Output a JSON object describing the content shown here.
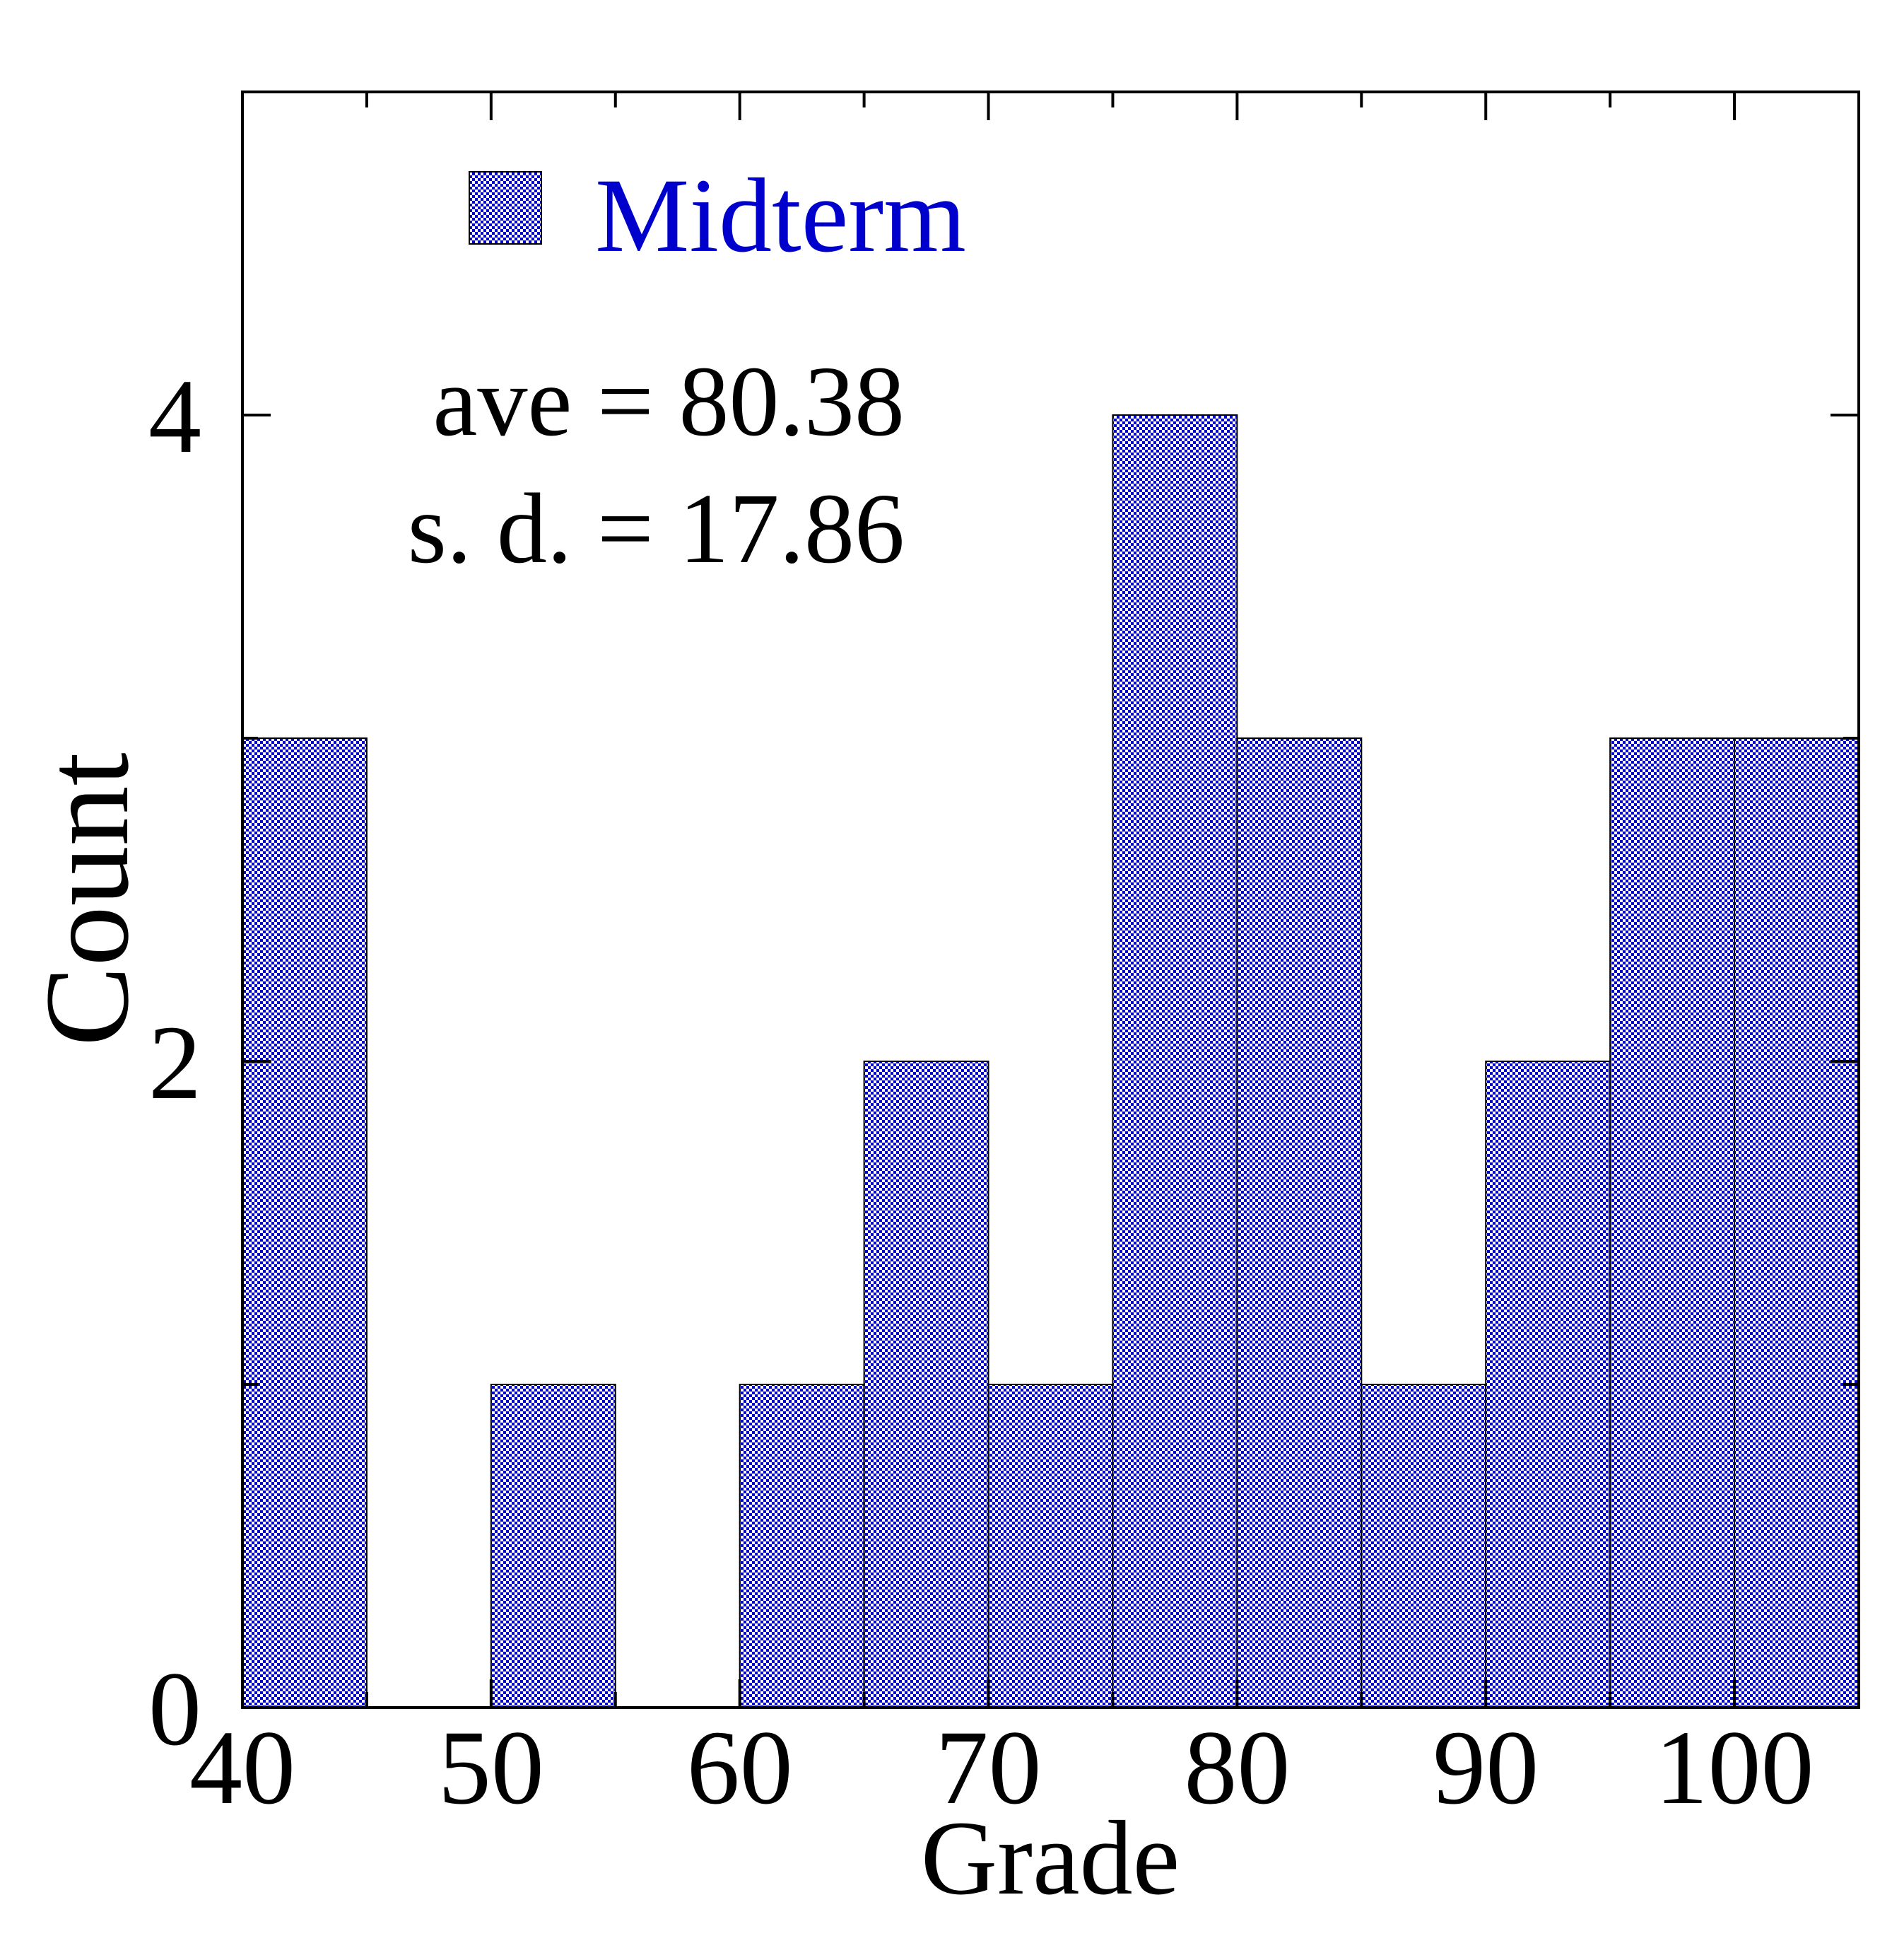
{
  "chart_data": {
    "type": "bar",
    "xlabel": "Grade",
    "ylabel": "Count",
    "xlim": [
      40,
      105
    ],
    "ylim": [
      0,
      5
    ],
    "bin_width": 5,
    "x_ticks": [
      "40",
      "50",
      "60",
      "70",
      "80",
      "90",
      "100"
    ],
    "x_tick_values": [
      40,
      50,
      60,
      70,
      80,
      90,
      100
    ],
    "y_ticks": [
      "0",
      "2",
      "4"
    ],
    "y_tick_values": [
      0,
      2,
      4
    ],
    "series": [
      {
        "name": "Midterm",
        "color": "#0000cc",
        "bins": [
          {
            "start": 40,
            "count": 3
          },
          {
            "start": 45,
            "count": 0
          },
          {
            "start": 50,
            "count": 1
          },
          {
            "start": 55,
            "count": 0
          },
          {
            "start": 60,
            "count": 1
          },
          {
            "start": 65,
            "count": 2
          },
          {
            "start": 70,
            "count": 1
          },
          {
            "start": 75,
            "count": 4
          },
          {
            "start": 80,
            "count": 3
          },
          {
            "start": 85,
            "count": 1
          },
          {
            "start": 90,
            "count": 2
          },
          {
            "start": 95,
            "count": 3
          },
          {
            "start": 100,
            "count": 3
          }
        ]
      }
    ],
    "legend": {
      "label": "Midterm",
      "placement": "top-left"
    },
    "annotations": {
      "ave": "ave = 80.38",
      "sd": "s. d. = 17.86"
    },
    "grid": false
  }
}
